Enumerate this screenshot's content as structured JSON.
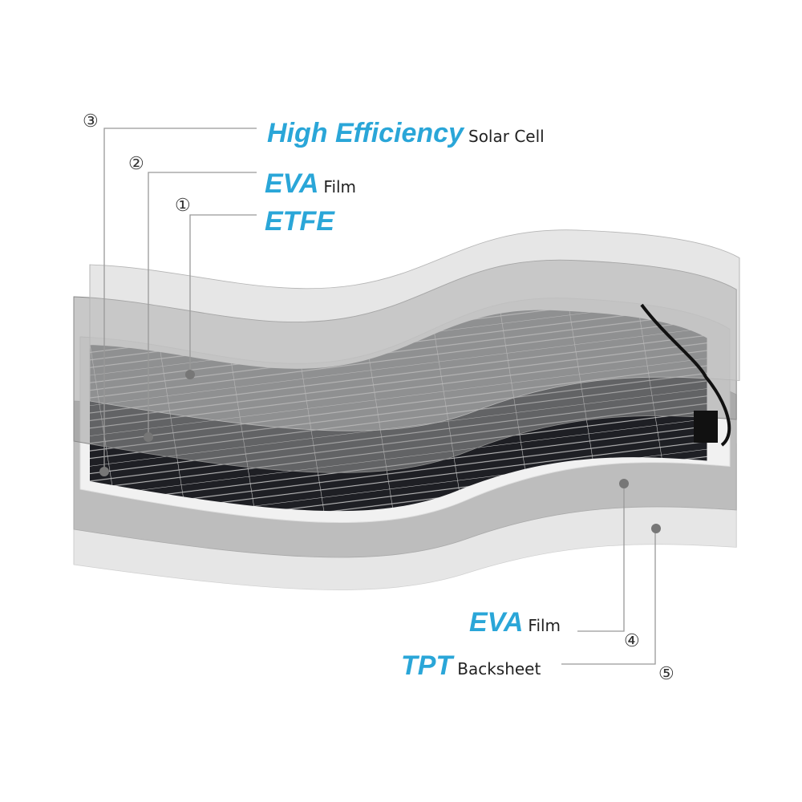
{
  "labels": [
    {
      "marker": "③",
      "emphasis": "High Efficiency",
      "text": "Solar Cell"
    },
    {
      "marker": "②",
      "emphasis": "EVA",
      "text": "Film"
    },
    {
      "marker": "①",
      "emphasis": "ETFE"
    },
    {
      "marker": "④",
      "emphasis": "EVA",
      "text": "Film"
    },
    {
      "marker": "⑤",
      "emphasis": "TPT",
      "text": "Backsheet"
    }
  ]
}
